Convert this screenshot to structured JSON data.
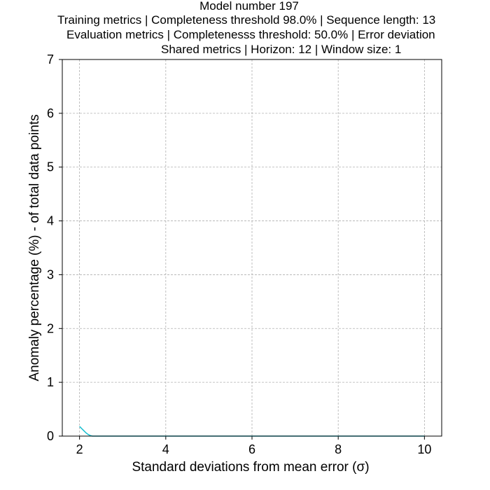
{
  "chart_data": {
    "type": "line",
    "title_lines": [
      "Model number 197",
      "Training metrics | Completeness threshold 98.0% | Sequence length: 13",
      "Evaluation metrics | Completenesss threshold: 50.0% | Error deviation",
      "Shared metrics | Horizon: 12 | Window size: 1"
    ],
    "xlabel": "Standard deviations from mean error (σ)",
    "ylabel": "Anomaly percentage (%) - of total data points",
    "xlim": [
      1.6,
      10.4
    ],
    "ylim": [
      0,
      7
    ],
    "xticks": [
      2,
      4,
      6,
      8,
      10
    ],
    "yticks": [
      0,
      1,
      2,
      3,
      4,
      5,
      6,
      7
    ],
    "grid": true,
    "series": [
      {
        "color": "#17becf",
        "x": [
          2.0,
          2.05,
          2.1,
          2.15,
          2.2,
          2.25,
          2.3,
          2.4,
          2.6,
          3.0,
          4.0,
          5.0,
          6.0,
          7.0,
          8.0,
          9.0,
          10.0
        ],
        "y": [
          0.18,
          0.14,
          0.1,
          0.06,
          0.03,
          0.01,
          0.0,
          0.0,
          0.0,
          0.0,
          0.0,
          0.0,
          0.0,
          0.0,
          0.0,
          0.0,
          0.0
        ]
      }
    ]
  }
}
